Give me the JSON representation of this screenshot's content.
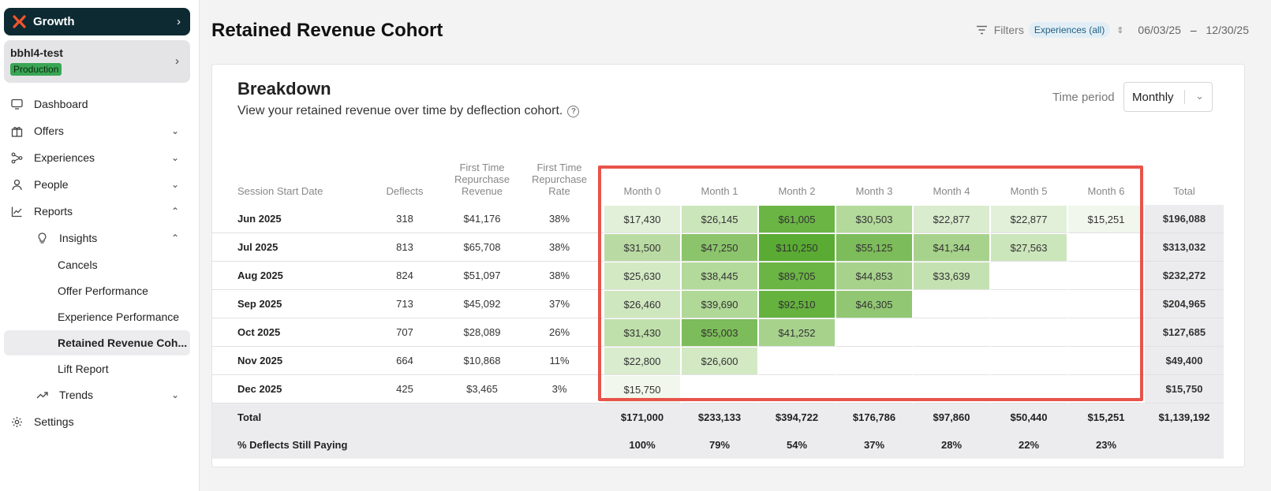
{
  "org": {
    "name": "Growth"
  },
  "env": {
    "name": "bbhl4-test",
    "badge": "Production"
  },
  "nav": {
    "dashboard": "Dashboard",
    "offers": "Offers",
    "experiences": "Experiences",
    "people": "People",
    "reports": "Reports",
    "insights": "Insights",
    "cancels": "Cancels",
    "offer_performance": "Offer Performance",
    "experience_performance": "Experience Performance",
    "retained_revenue": "Retained Revenue Coh...",
    "lift_report": "Lift Report",
    "trends": "Trends",
    "settings": "Settings"
  },
  "page": {
    "title": "Retained Revenue Cohort"
  },
  "filters": {
    "label": "Filters",
    "chip": "Experiences (all)",
    "date_from": "06/03/25",
    "date_sep": "–",
    "date_to": "12/30/25"
  },
  "card": {
    "title": "Breakdown",
    "subtitle": "View your retained revenue over time by deflection cohort.",
    "time_period_label": "Time period",
    "time_period_value": "Monthly"
  },
  "table": {
    "headers": {
      "date": "Session Start Date",
      "deflects": "Deflects",
      "ftr_revenue": "First Time Repurchase Revenue",
      "ftr_rate": "First Time Repurchase Rate",
      "months": [
        "Month 0",
        "Month 1",
        "Month 2",
        "Month 3",
        "Month 4",
        "Month 5",
        "Month 6"
      ],
      "total": "Total"
    },
    "rows": [
      {
        "date": "Jun 2025",
        "deflects": "318",
        "rev": "$41,176",
        "rate": "38%",
        "months": [
          "$17,430",
          "$26,145",
          "$61,005",
          "$30,503",
          "$22,877",
          "$22,877",
          "$15,251"
        ],
        "total": "$196,088"
      },
      {
        "date": "Jul 2025",
        "deflects": "813",
        "rev": "$65,708",
        "rate": "38%",
        "months": [
          "$31,500",
          "$47,250",
          "$110,250",
          "$55,125",
          "$41,344",
          "$27,563",
          ""
        ],
        "total": "$313,032"
      },
      {
        "date": "Aug 2025",
        "deflects": "824",
        "rev": "$51,097",
        "rate": "38%",
        "months": [
          "$25,630",
          "$38,445",
          "$89,705",
          "$44,853",
          "$33,639",
          "",
          ""
        ],
        "total": "$232,272"
      },
      {
        "date": "Sep 2025",
        "deflects": "713",
        "rev": "$45,092",
        "rate": "37%",
        "months": [
          "$26,460",
          "$39,690",
          "$92,510",
          "$46,305",
          "",
          "",
          ""
        ],
        "total": "$204,965"
      },
      {
        "date": "Oct 2025",
        "deflects": "707",
        "rev": "$28,089",
        "rate": "26%",
        "months": [
          "$31,430",
          "$55,003",
          "$41,252",
          "",
          "",
          "",
          ""
        ],
        "total": "$127,685"
      },
      {
        "date": "Nov 2025",
        "deflects": "664",
        "rev": "$10,868",
        "rate": "11%",
        "months": [
          "$22,800",
          "$26,600",
          "",
          "",
          "",
          "",
          ""
        ],
        "total": "$49,400"
      },
      {
        "date": "Dec 2025",
        "deflects": "425",
        "rev": "$3,465",
        "rate": "3%",
        "months": [
          "$15,750",
          "",
          "",
          "",
          "",
          "",
          ""
        ],
        "total": "$15,750"
      }
    ],
    "cell_colors": [
      [
        "#e2f0d9",
        "#cce6bb",
        "#6bb545",
        "#b3d99b",
        "#d9ecce",
        "#e2f0d9",
        "#f1f7ec"
      ],
      [
        "#b9dba3",
        "#8cc46c",
        "#5aab33",
        "#7dbc5a",
        "#a7d28c",
        "#cce6bb",
        ""
      ],
      [
        "#d3e9c4",
        "#b3d99b",
        "#6bb545",
        "#a7d28c",
        "#c4e2b1",
        "",
        ""
      ],
      [
        "#cfe7bf",
        "#b0d897",
        "#65b23f",
        "#91c772",
        "",
        "",
        ""
      ],
      [
        "#bfe0aa",
        "#7dbc5a",
        "#a7d28c",
        "",
        "",
        "",
        ""
      ],
      [
        "#d9ecce",
        "#d3e9c4",
        "",
        "",
        "",
        "",
        ""
      ],
      [
        "#f1f7ec",
        "",
        "",
        "",
        "",
        "",
        ""
      ]
    ],
    "footer_total": {
      "label": "Total",
      "months": [
        "$171,000",
        "$233,133",
        "$394,722",
        "$176,786",
        "$97,860",
        "$50,440",
        "$15,251"
      ],
      "total": "$1,139,192"
    },
    "footer_pct": {
      "label": "% Deflects Still Paying",
      "months": [
        "100%",
        "79%",
        "54%",
        "37%",
        "28%",
        "22%",
        "23%"
      ]
    }
  }
}
